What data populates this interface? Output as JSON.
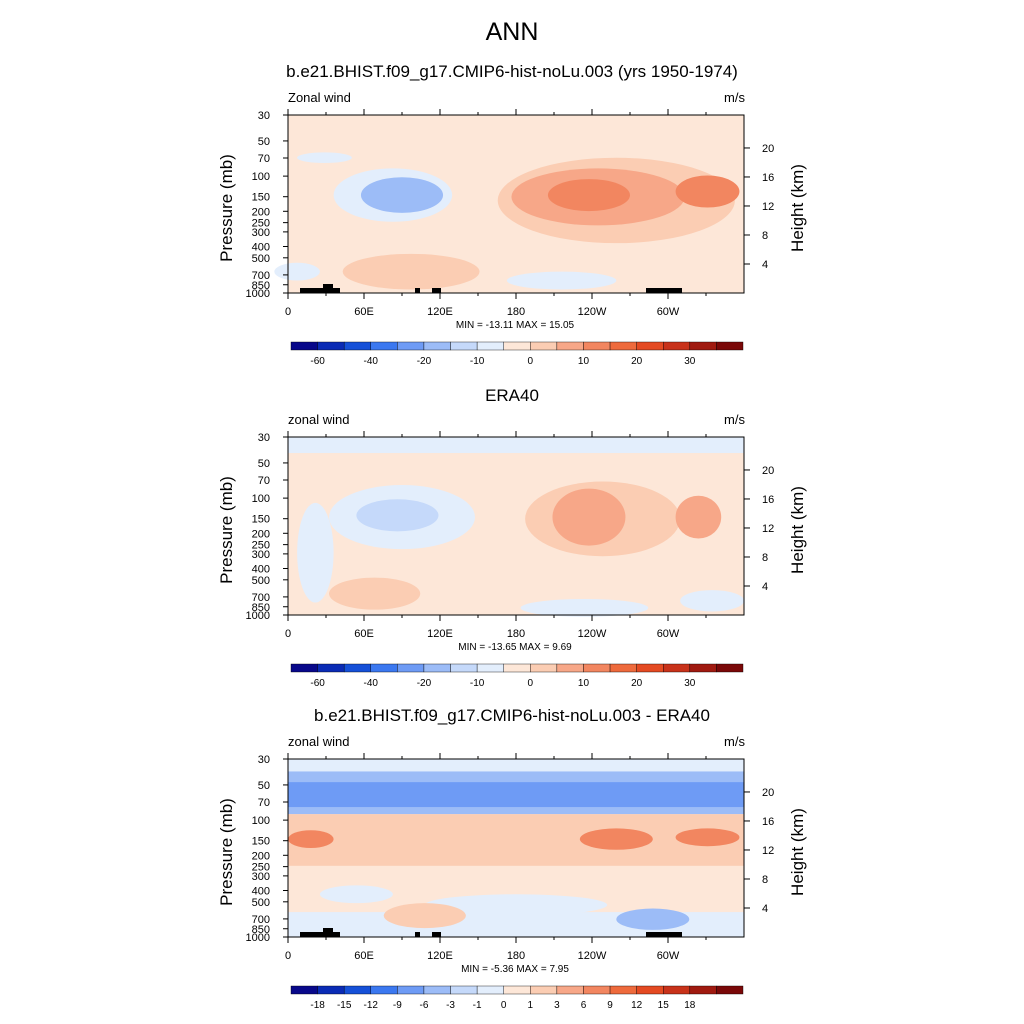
{
  "main_title": "ANN",
  "chart_data": [
    {
      "type": "heatmap",
      "title": "b.e21.BHIST.f09_g17.CMIP6-hist-noLu.003 (yrs 1950-1974)",
      "left_label": "Zonal wind",
      "right_label": "m/s",
      "ylabel": "Pressure (mb)",
      "y2label": "Height (km)",
      "x_ticks": [
        "0",
        "60E",
        "120E",
        "180",
        "120W",
        "60W"
      ],
      "p_ticks": [
        "30",
        "50",
        "70",
        "100",
        "150",
        "200",
        "250",
        "300",
        "400",
        "500",
        "700",
        "850",
        "1000"
      ],
      "h_ticks": [
        "20",
        "16",
        "12",
        "8",
        "4"
      ],
      "min_max": "MIN = -13.11  MAX =  15.05",
      "colorbar_labels": [
        "-60",
        "-40",
        "-20",
        "-10",
        "0",
        "10",
        "20",
        "30"
      ],
      "min": -13.11,
      "max": 15.05
    },
    {
      "type": "heatmap",
      "title": "ERA40",
      "left_label": "zonal wind",
      "right_label": "m/s",
      "ylabel": "Pressure (mb)",
      "y2label": "Height (km)",
      "x_ticks": [
        "0",
        "60E",
        "120E",
        "180",
        "120W",
        "60W"
      ],
      "p_ticks": [
        "30",
        "50",
        "70",
        "100",
        "150",
        "200",
        "250",
        "300",
        "400",
        "500",
        "700",
        "850",
        "1000"
      ],
      "h_ticks": [
        "20",
        "16",
        "12",
        "8",
        "4"
      ],
      "min_max": "MIN = -13.65  MAX =   9.69",
      "colorbar_labels": [
        "-60",
        "-40",
        "-20",
        "-10",
        "0",
        "10",
        "20",
        "30"
      ],
      "min": -13.65,
      "max": 9.69
    },
    {
      "type": "heatmap",
      "title": "b.e21.BHIST.f09_g17.CMIP6-hist-noLu.003 - ERA40",
      "left_label": "zonal wind",
      "right_label": "m/s",
      "ylabel": "Pressure (mb)",
      "y2label": "Height (km)",
      "x_ticks": [
        "0",
        "60E",
        "120E",
        "180",
        "120W",
        "60W"
      ],
      "p_ticks": [
        "30",
        "50",
        "70",
        "100",
        "150",
        "200",
        "250",
        "300",
        "400",
        "500",
        "700",
        "850",
        "1000"
      ],
      "h_ticks": [
        "20",
        "16",
        "12",
        "8",
        "4"
      ],
      "min_max": "MIN =  -5.36  MAX =   7.95",
      "colorbar_labels": [
        "-18",
        "-15",
        "-12",
        "-9",
        "-6",
        "-3",
        "-1",
        "0",
        "1",
        "3",
        "6",
        "9",
        "12",
        "15",
        "18"
      ],
      "min": -5.36,
      "max": 7.95
    }
  ],
  "colors": {
    "colorbar": [
      "#08088a",
      "#0a2bb5",
      "#1550d8",
      "#3b78f0",
      "#6e9bf5",
      "#9cbcf7",
      "#c5d9fa",
      "#e3eefc",
      "#fde7d8",
      "#fbcdb3",
      "#f7a788",
      "#f28660",
      "#ee6a3c",
      "#e44a22",
      "#c8321a",
      "#a01a10",
      "#7a0808"
    ],
    "terrain": "#000000"
  }
}
